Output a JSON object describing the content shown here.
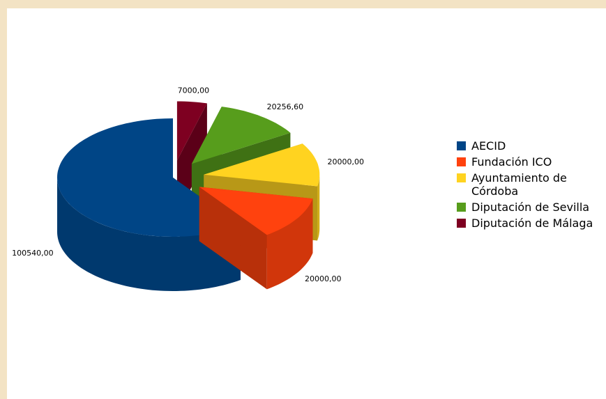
{
  "chart_data": {
    "type": "pie3d",
    "categories": [
      "AECID",
      "Fundación ICO",
      "Ayuntamiento de Córdoba",
      "Diputación de Sevilla",
      "Diputación de Málaga"
    ],
    "values": [
      100540,
      20000,
      20000,
      20256.6,
      7000
    ],
    "value_labels": [
      "100540,00",
      "20000,00",
      "20000,00",
      "20256,60",
      "7000,00"
    ],
    "colors": [
      "#004586",
      "#ff420e",
      "#ffd320",
      "#579d1c",
      "#7e0021"
    ],
    "legend": "right"
  }
}
